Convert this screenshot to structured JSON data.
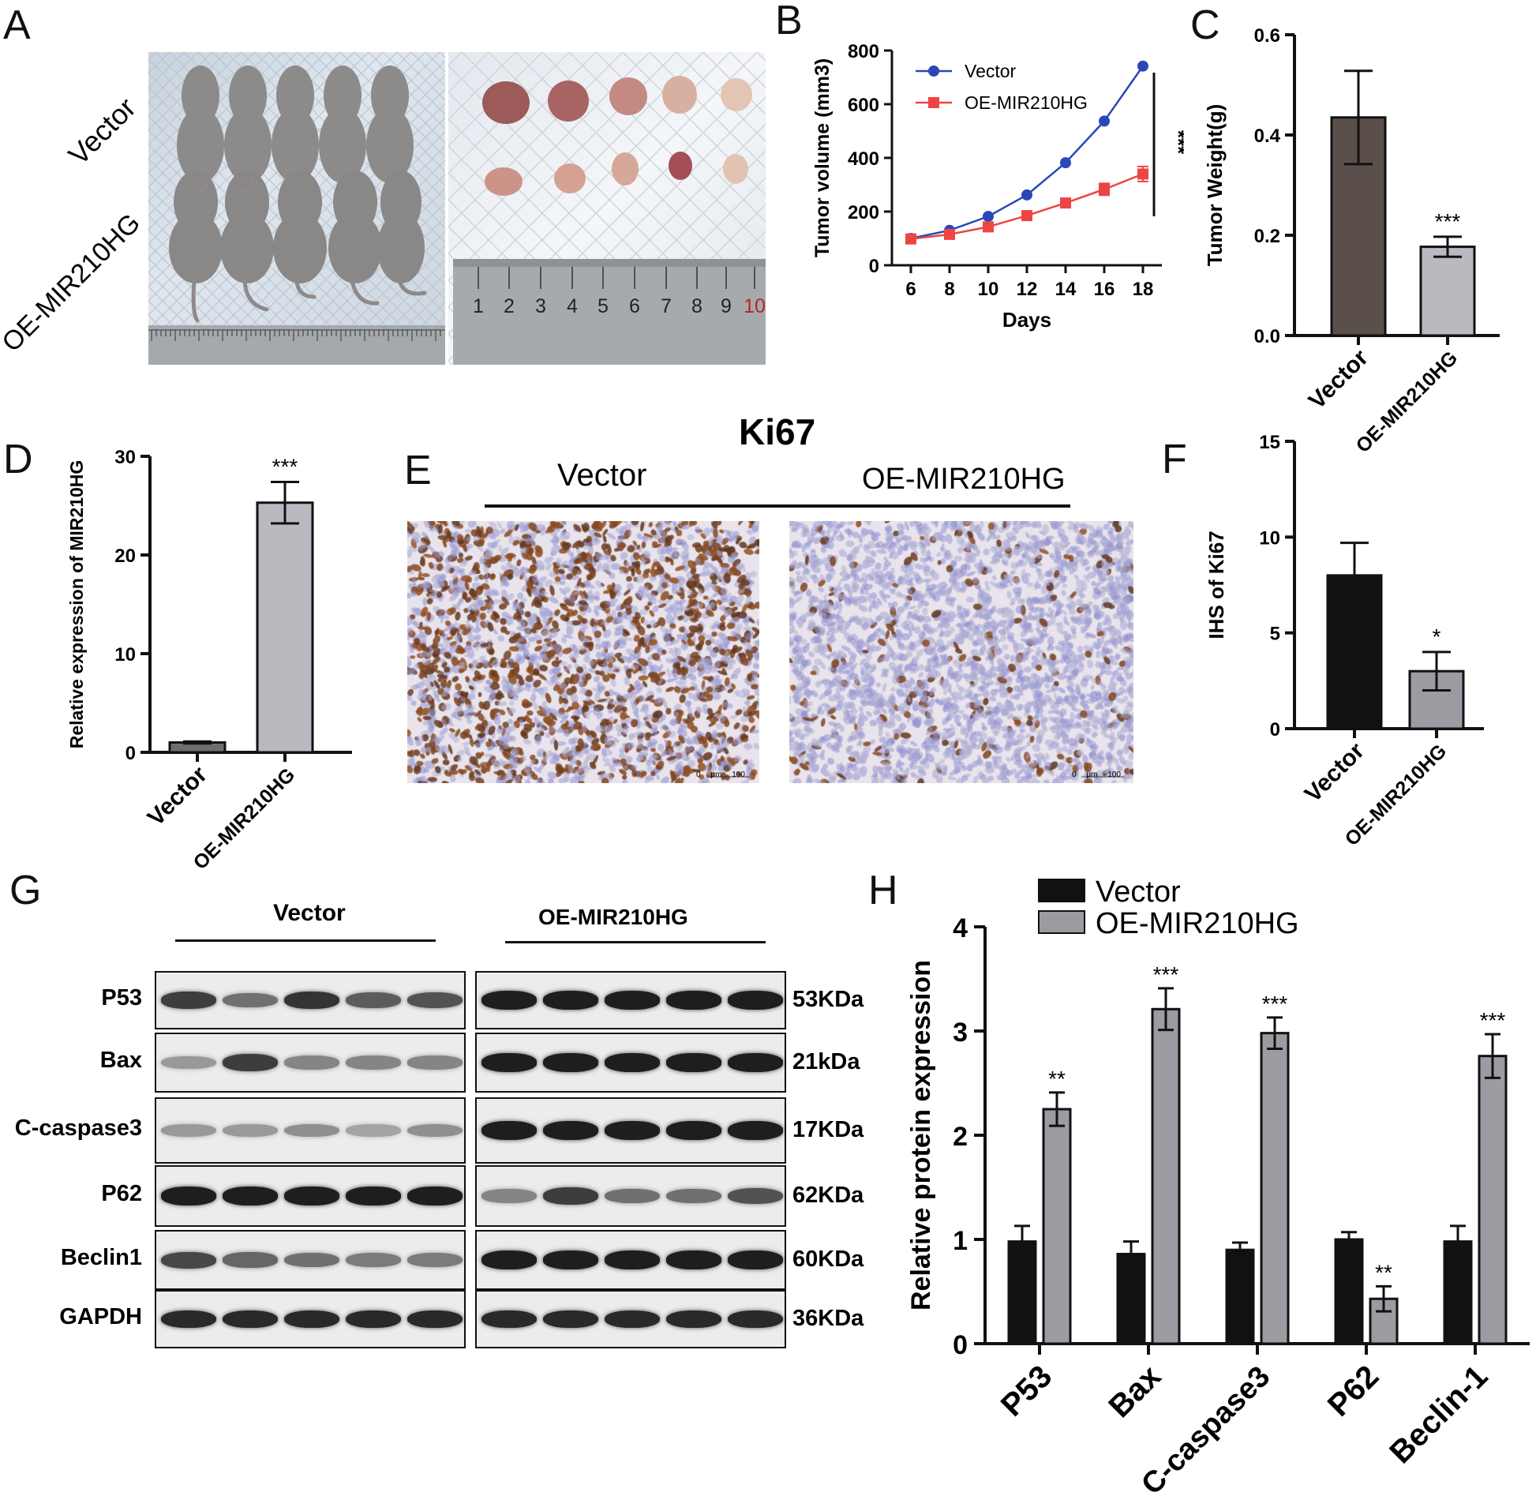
{
  "panel_letters": [
    "A",
    "B",
    "C",
    "D",
    "E",
    "F",
    "G",
    "H"
  ],
  "panelA": {
    "row_labels": [
      "Vector",
      "OE-MIR210HG"
    ],
    "ruler_ticks": [
      "1",
      "2",
      "3",
      "4",
      "5",
      "6",
      "7",
      "8",
      "9",
      "10"
    ]
  },
  "panelE": {
    "title": "Ki67",
    "groups": [
      "Vector",
      "OE-MIR210HG"
    ],
    "scale_bar": [
      "0",
      "μm",
      "100"
    ]
  },
  "panelG": {
    "groups": [
      "Vector",
      "OE-MIR210HG"
    ],
    "proteins": [
      {
        "name": "P53",
        "kda": "53KDa",
        "vector": [
          0.8,
          0.55,
          0.85,
          0.65,
          0.7
        ],
        "oe": [
          0.95,
          0.95,
          0.95,
          0.95,
          0.95
        ]
      },
      {
        "name": "Bax",
        "kda": "21kDa",
        "vector": [
          0.35,
          0.8,
          0.45,
          0.45,
          0.45
        ],
        "oe": [
          0.95,
          0.95,
          0.95,
          0.95,
          0.95
        ]
      },
      {
        "name": "C-caspase3",
        "kda": "17KDa",
        "vector": [
          0.35,
          0.35,
          0.4,
          0.3,
          0.4
        ],
        "oe": [
          0.95,
          0.95,
          0.95,
          0.95,
          0.95
        ]
      },
      {
        "name": "P62",
        "kda": "62KDa",
        "vector": [
          0.95,
          0.95,
          0.95,
          0.95,
          0.95
        ],
        "oe": [
          0.45,
          0.8,
          0.55,
          0.55,
          0.7
        ]
      },
      {
        "name": "Beclin1",
        "kda": "60KDa",
        "vector": [
          0.75,
          0.6,
          0.55,
          0.5,
          0.5
        ],
        "oe": [
          0.95,
          0.95,
          0.95,
          0.95,
          0.95
        ]
      },
      {
        "name": "GAPDH",
        "kda": "36KDa",
        "vector": [
          0.9,
          0.9,
          0.9,
          0.9,
          0.9
        ],
        "oe": [
          0.9,
          0.9,
          0.9,
          0.9,
          0.9
        ]
      }
    ]
  },
  "chart_data": [
    {
      "panel": "B",
      "type": "line",
      "xlabel": "Days",
      "ylabel": "Tumor volume (mm3)",
      "x": [
        6,
        8,
        10,
        12,
        14,
        16,
        18
      ],
      "xticks": [
        "6",
        "8",
        "10",
        "12",
        "14",
        "16",
        "18"
      ],
      "ylim": [
        0,
        800
      ],
      "yticks": [
        "0",
        "200",
        "400",
        "600",
        "800"
      ],
      "series": [
        {
          "name": "Vector",
          "color": "#2a47b8",
          "marker": "circle",
          "values": [
            100,
            130,
            182,
            262,
            382,
            537,
            742
          ],
          "errors": [
            0,
            0,
            0,
            0,
            0,
            0,
            0
          ]
        },
        {
          "name": "OE-MIR210HG",
          "color": "#ee4444",
          "marker": "square",
          "values": [
            98,
            115,
            143,
            185,
            232,
            283,
            340
          ],
          "errors": [
            0,
            0,
            0,
            0,
            15,
            22,
            28
          ]
        }
      ],
      "significance": "***",
      "legend": "top-left"
    },
    {
      "panel": "C",
      "type": "bar",
      "ylabel": "Tumor Weight(g)",
      "categories": [
        "Vector",
        "OE-MIR210HG"
      ],
      "values": [
        0.435,
        0.177
      ],
      "errors": [
        0.093,
        0.02
      ],
      "colors": [
        "#5b4f4c",
        "#b9b9bf"
      ],
      "ylim": [
        0,
        0.6
      ],
      "yticks": [
        "0.0",
        "0.2",
        "0.4",
        "0.6"
      ],
      "annotations": [
        "",
        "***"
      ]
    },
    {
      "panel": "D",
      "type": "bar",
      "ylabel": "Relative expression of MIR210HG",
      "categories": [
        "Vector",
        "OE-MIR210HG"
      ],
      "values": [
        1.0,
        25.3
      ],
      "errors": [
        0.1,
        2.1
      ],
      "colors": [
        "#6f6e6e",
        "#b9b9bf"
      ],
      "ylim": [
        0,
        30
      ],
      "yticks": [
        "0",
        "10",
        "20",
        "30"
      ],
      "annotations": [
        "",
        "***"
      ]
    },
    {
      "panel": "F",
      "type": "bar",
      "ylabel": "IHS of Ki67",
      "categories": [
        "Vector",
        "OE-MIR210HG"
      ],
      "values": [
        8.0,
        3.0
      ],
      "errors": [
        1.7,
        1.0
      ],
      "colors": [
        "#111111",
        "#9b9ba1"
      ],
      "ylim": [
        0,
        15
      ],
      "yticks": [
        "0",
        "5",
        "10",
        "15"
      ],
      "annotations": [
        "",
        "*"
      ]
    },
    {
      "panel": "H",
      "type": "bar",
      "ylabel": "Relative protein expression",
      "categories": [
        "P53",
        "Bax",
        "C-caspase3",
        "P62",
        "Beclin-1"
      ],
      "series": [
        {
          "name": "Vector",
          "color": "#111111",
          "values": [
            0.98,
            0.86,
            0.9,
            1.0,
            0.98
          ],
          "errors": [
            0.15,
            0.12,
            0.07,
            0.07,
            0.15
          ]
        },
        {
          "name": "OE-MIR210HG",
          "color": "#9b9ba1",
          "values": [
            2.25,
            3.21,
            2.98,
            0.43,
            2.76
          ],
          "errors": [
            0.16,
            0.2,
            0.15,
            0.12,
            0.21
          ]
        }
      ],
      "annotations": [
        "**",
        "***",
        "***",
        "**",
        "***"
      ],
      "ylim": [
        0,
        4
      ],
      "yticks": [
        "0",
        "1",
        "2",
        "3",
        "4"
      ],
      "legend": "top-left"
    }
  ]
}
